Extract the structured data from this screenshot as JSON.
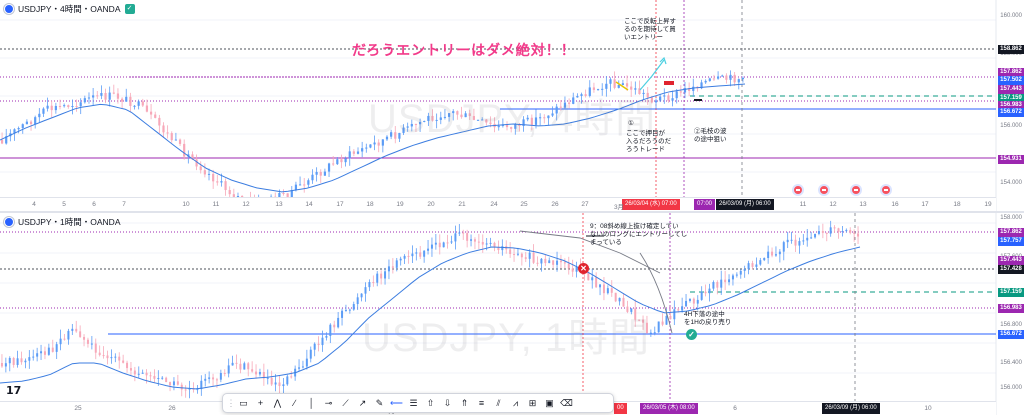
{
  "top": {
    "symbol": "USDJPY・4時間・OANDA",
    "watermark": "USDJPY, 4時間",
    "title_note": "だろうエントリーはダメ絶対！！",
    "note_reversal": "ここで反転上昇す\nるのを期待して買\nいエントリー",
    "note_pullback_num": "①",
    "note_pullback": "ここで押目が\n入るだろうのだ\nろうトレード",
    "note_wave": "②毛枝の波\nの途中狙い",
    "price_ticks": [
      "160.000",
      "158.000",
      "156.000",
      "154.000"
    ],
    "price_labels": [
      {
        "value": "158.862",
        "color": "#131722"
      },
      {
        "value": "157.862",
        "color": "#9c27b0"
      },
      {
        "value": "157.502",
        "color": "#2962ff"
      },
      {
        "value": "157.443",
        "color": "#9c27b0"
      },
      {
        "value": "157.159",
        "color": "#089981"
      },
      {
        "value": "156.983",
        "color": "#9c27b0"
      },
      {
        "value": "156.672",
        "color": "#2962ff"
      },
      {
        "value": "154.931",
        "color": "#9c27b0"
      }
    ],
    "x_ticks": [
      "4",
      "5",
      "6",
      "7",
      "10",
      "11",
      "12",
      "13",
      "14",
      "17",
      "18",
      "19",
      "20",
      "21",
      "24",
      "25",
      "26",
      "27",
      "3月",
      "11",
      "12",
      "13",
      "16",
      "17",
      "18",
      "19"
    ],
    "x_highlight_1": "26/03/04 (水)  07:00",
    "x_highlight_2": "07:00",
    "x_highlight_3": "26/03/09 (月)  06:00"
  },
  "bottom": {
    "symbol": "USDJPY・1時間・OANDA",
    "watermark": "USDJPY, 1時間",
    "note_trend": "9：08斜め線上抜け確定してい\nないのロングにエントリーしてし\nまっている",
    "note_4h": "4H下落の途中\nを1Hの戻り売り",
    "price_ticks": [
      "158.000",
      "157.600",
      "157.200",
      "156.800",
      "156.400",
      "156.000"
    ],
    "price_labels": [
      {
        "value": "157.862",
        "color": "#9c27b0"
      },
      {
        "value": "157.757",
        "color": "#2962ff"
      },
      {
        "value": "157.443",
        "color": "#9c27b0"
      },
      {
        "value": "157.428",
        "color": "#131722"
      },
      {
        "value": "157.159",
        "color": "#089981"
      },
      {
        "value": "156.983",
        "color": "#9c27b0"
      },
      {
        "value": "156.672",
        "color": "#2962ff"
      }
    ],
    "x_ticks": [
      "25",
      "26",
      "27",
      "3月",
      "4",
      "5",
      "6",
      "9",
      "10"
    ],
    "x_highlight_1": "26/03/05 (木)  08:00",
    "x_highlight_2": "26/03/09 (月)  06:00",
    "x_highlight_3": "00"
  },
  "toolbar": {
    "tools": [
      "rectangle-tool",
      "crosshair-tool",
      "path-tool",
      "trend-line-tool",
      "vertical-line-tool",
      "horizontal-ray-tool",
      "info-line-tool",
      "arrow-tool",
      "brush-tool",
      "horizontal-line-tool",
      "fib-tool",
      "long-position-tool",
      "short-position-tool",
      "arrow-mark-tool",
      "lines-tool",
      "parallel-channel-tool",
      "regression-tool",
      "forecast-tool",
      "image-tool",
      "eraser-tool"
    ]
  },
  "colors": {
    "up": "#5b9cf6",
    "down": "#f7a8b8",
    "ma": "#3c7de0",
    "purple_line": "#9c27b0",
    "green_line": "#089981"
  }
}
